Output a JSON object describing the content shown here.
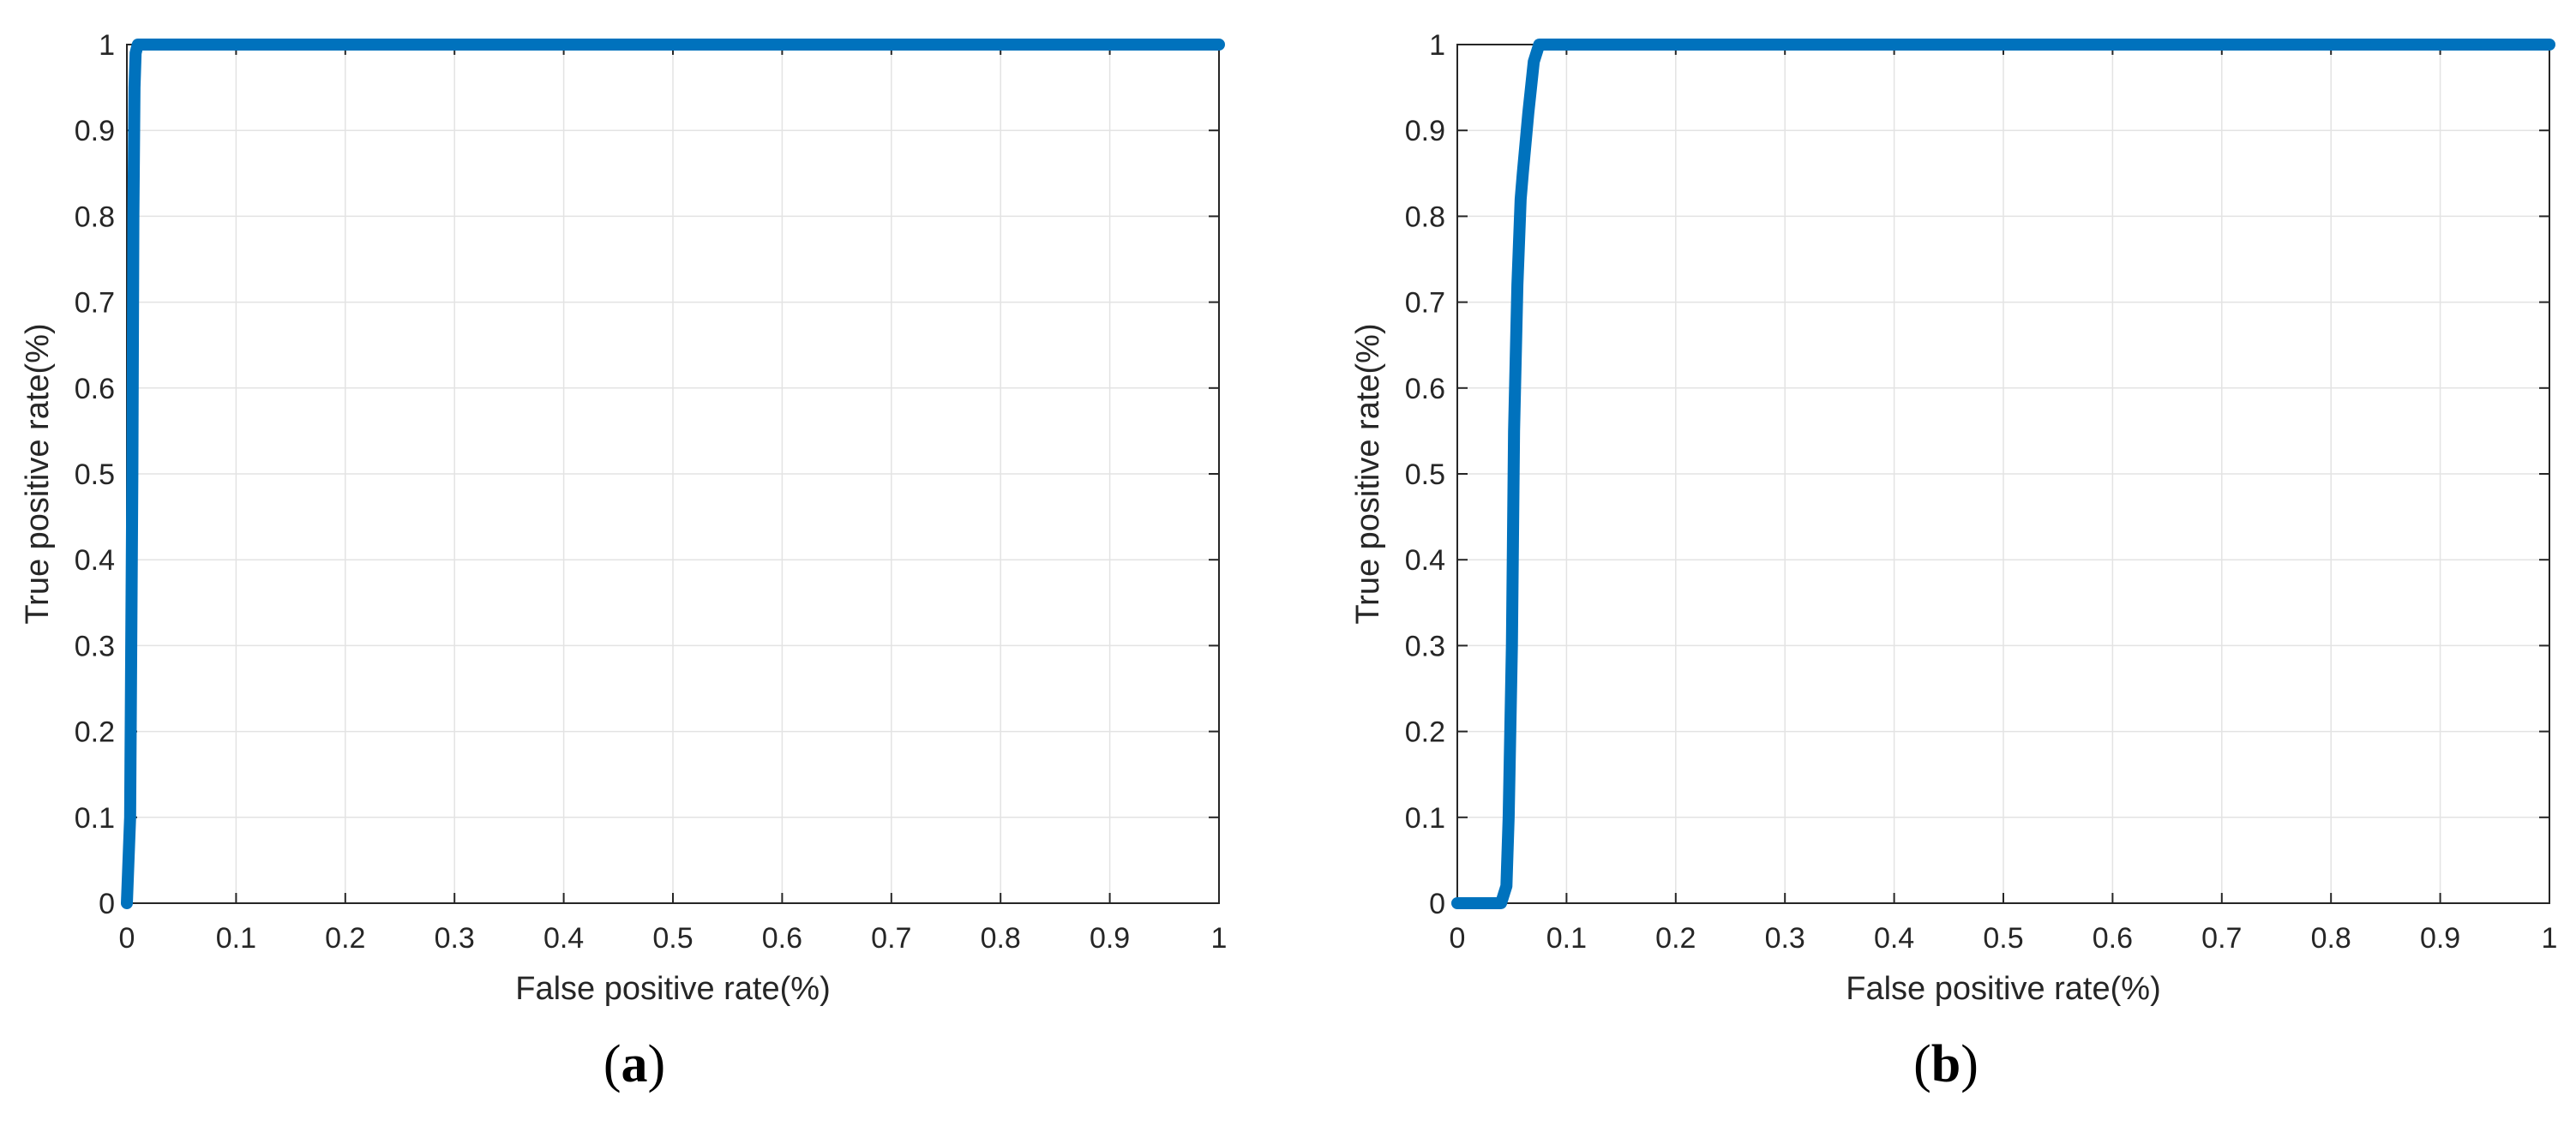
{
  "colors": {
    "line": "#0072bd",
    "grid": "#e3e3e3",
    "axis": "#262626"
  },
  "chart_data": [
    {
      "type": "line",
      "panel_label": "a",
      "xlabel": "False positive rate(%)",
      "ylabel": "True positive rate(%)",
      "xlim": [
        0,
        1
      ],
      "ylim": [
        0,
        1
      ],
      "xticks": [
        "0",
        "0.1",
        "0.2",
        "0.3",
        "0.4",
        "0.5",
        "0.6",
        "0.7",
        "0.8",
        "0.9",
        "1"
      ],
      "yticks": [
        "0",
        "0.1",
        "0.2",
        "0.3",
        "0.4",
        "0.5",
        "0.6",
        "0.7",
        "0.8",
        "0.9",
        "1"
      ],
      "grid": true,
      "series": [
        {
          "x": [
            0,
            0.003,
            0.005,
            0.006,
            0.007,
            0.008,
            0.01,
            0.3,
            0.6,
            1.0
          ],
          "y": [
            0,
            0.1,
            0.5,
            0.8,
            0.95,
            0.99,
            1.0,
            1.0,
            1.0,
            1.0
          ]
        }
      ]
    },
    {
      "type": "line",
      "panel_label": "b",
      "xlabel": "False positive rate(%)",
      "ylabel": "True positive rate(%)",
      "xlim": [
        0,
        1
      ],
      "ylim": [
        0,
        1
      ],
      "xticks": [
        "0",
        "0.1",
        "0.2",
        "0.3",
        "0.4",
        "0.5",
        "0.6",
        "0.7",
        "0.8",
        "0.9",
        "1"
      ],
      "yticks": [
        "0",
        "0.1",
        "0.2",
        "0.3",
        "0.4",
        "0.5",
        "0.6",
        "0.7",
        "0.8",
        "0.9",
        "1"
      ],
      "grid": true,
      "series": [
        {
          "x": [
            0,
            0.02,
            0.04,
            0.045,
            0.047,
            0.05,
            0.052,
            0.055,
            0.058,
            0.06,
            0.065,
            0.07,
            0.075,
            0.08,
            0.2,
            0.5,
            1.0
          ],
          "y": [
            0,
            0,
            0,
            0.02,
            0.1,
            0.3,
            0.55,
            0.72,
            0.82,
            0.85,
            0.92,
            0.98,
            1.0,
            1.0,
            1.0,
            1.0,
            1.0
          ]
        }
      ]
    }
  ]
}
